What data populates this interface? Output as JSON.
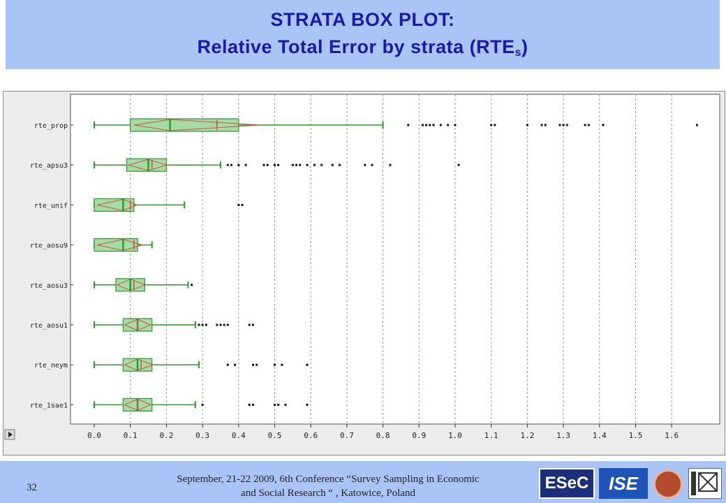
{
  "title": {
    "line1": "STRATA BOX PLOT:",
    "line2_main": "Relative Total Error by strata (RTE",
    "line2_sub": "s",
    "line2_end": ")"
  },
  "footer": {
    "slide_number": "32",
    "line1": "September, 21-22 2009, 6th Conference “Survey Sampling in Economic",
    "line2": "and Social Research “ , Katowice, Poland",
    "logo_esec": "ESeC",
    "logo_ise": "ISE"
  },
  "colors": {
    "box": "#2a9a2a",
    "box_fill": "#a6dba6",
    "notch": "#d44a4a",
    "outlier": "#111111",
    "grid": "#9a9a9a"
  },
  "chart_data": {
    "type": "boxplot",
    "orientation": "horizontal",
    "xlim": [
      0,
      1.7
    ],
    "x_ticks": [
      "0.0",
      "0.1",
      "0.2",
      "0.3",
      "0.4",
      "0.5",
      "0.6",
      "0.7",
      "0.8",
      "0.9",
      "1.0",
      "1.1",
      "1.2",
      "1.3",
      "1.4",
      "1.5",
      "1.6"
    ],
    "x_tick_values": [
      0,
      0.1,
      0.2,
      0.3,
      0.4,
      0.5,
      0.6,
      0.7,
      0.8,
      0.9,
      1.0,
      1.1,
      1.2,
      1.3,
      1.4,
      1.5,
      1.6
    ],
    "grid": "vertical dotted",
    "categories": [
      "rte_prop",
      "rte_apsu3",
      "rte_unif",
      "rte_aosu9",
      "rte_aosu3",
      "rte_aosu1",
      "rte_neym",
      "rte_1sae1"
    ],
    "series": [
      {
        "name": "rte_prop",
        "whisker_low": 0.0,
        "q1": 0.1,
        "median": 0.21,
        "mean": 0.34,
        "q3": 0.4,
        "whisker_high": 0.8,
        "outliers": [
          0.87,
          0.91,
          0.92,
          0.93,
          0.94,
          0.96,
          0.98,
          1.0,
          1.1,
          1.11,
          1.2,
          1.24,
          1.25,
          1.29,
          1.3,
          1.31,
          1.36,
          1.37,
          1.41,
          1.67
        ]
      },
      {
        "name": "rte_apsu3",
        "whisker_low": 0.0,
        "q1": 0.09,
        "median": 0.15,
        "mean": 0.16,
        "q3": 0.2,
        "whisker_high": 0.35,
        "outliers": [
          0.37,
          0.38,
          0.4,
          0.42,
          0.47,
          0.48,
          0.5,
          0.51,
          0.55,
          0.56,
          0.57,
          0.59,
          0.61,
          0.63,
          0.66,
          0.68,
          0.75,
          0.77,
          0.82,
          1.01
        ]
      },
      {
        "name": "rte_unif",
        "whisker_low": 0.0,
        "q1": 0.0,
        "median": 0.08,
        "mean": 0.1,
        "q3": 0.11,
        "whisker_high": 0.25,
        "outliers": [
          0.4,
          0.41
        ]
      },
      {
        "name": "rte_aosu9",
        "whisker_low": 0.0,
        "q1": 0.0,
        "median": 0.08,
        "mean": 0.11,
        "q3": 0.12,
        "whisker_high": 0.16,
        "outliers": []
      },
      {
        "name": "rte_aosu3",
        "whisker_low": 0.0,
        "q1": 0.06,
        "median": 0.1,
        "mean": 0.11,
        "q3": 0.14,
        "whisker_high": 0.26,
        "outliers": [
          0.27
        ]
      },
      {
        "name": "rte_aosu1",
        "whisker_low": 0.0,
        "q1": 0.08,
        "median": 0.12,
        "mean": 0.12,
        "q3": 0.16,
        "whisker_high": 0.28,
        "outliers": [
          0.29,
          0.3,
          0.31,
          0.34,
          0.35,
          0.36,
          0.37,
          0.43,
          0.44
        ]
      },
      {
        "name": "rte_neym",
        "whisker_low": 0.0,
        "q1": 0.08,
        "median": 0.12,
        "mean": 0.13,
        "q3": 0.16,
        "whisker_high": 0.29,
        "outliers": [
          0.37,
          0.39,
          0.44,
          0.45,
          0.5,
          0.52,
          0.59
        ]
      },
      {
        "name": "rte_1sae1",
        "whisker_low": 0.0,
        "q1": 0.08,
        "median": 0.12,
        "mean": 0.12,
        "q3": 0.16,
        "whisker_high": 0.28,
        "outliers": [
          0.3,
          0.43,
          0.44,
          0.5,
          0.51,
          0.53,
          0.59
        ]
      }
    ]
  }
}
